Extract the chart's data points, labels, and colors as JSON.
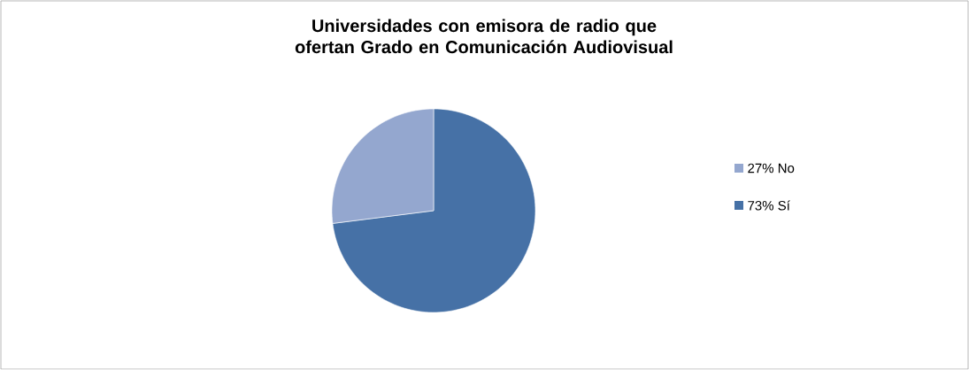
{
  "chart_data": {
    "type": "pie",
    "title": "Universidades con emisora de radio que ofertan Grado en Comunicación Audiovisual",
    "categories": [
      "73% Sí",
      "27% No"
    ],
    "values": [
      73,
      27
    ],
    "colors": [
      "#4671a6",
      "#94a7cf"
    ],
    "legend": "right"
  }
}
